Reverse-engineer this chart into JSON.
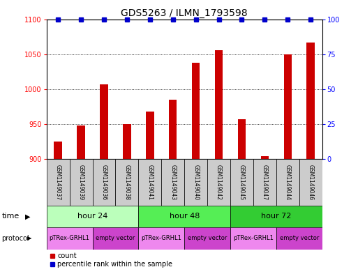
{
  "title": "GDS5263 / ILMN_1793598",
  "samples": [
    "GSM1149037",
    "GSM1149039",
    "GSM1149036",
    "GSM1149038",
    "GSM1149041",
    "GSM1149043",
    "GSM1149040",
    "GSM1149042",
    "GSM1149045",
    "GSM1149047",
    "GSM1149044",
    "GSM1149046"
  ],
  "counts": [
    925,
    948,
    1007,
    950,
    968,
    985,
    1038,
    1056,
    957,
    904,
    1050,
    1067
  ],
  "percentiles": [
    100,
    100,
    100,
    100,
    100,
    100,
    100,
    100,
    100,
    100,
    100,
    100
  ],
  "ylim_left": [
    900,
    1100
  ],
  "ylim_right": [
    0,
    100
  ],
  "yticks_left": [
    900,
    950,
    1000,
    1050,
    1100
  ],
  "yticks_right": [
    0,
    25,
    50,
    75,
    100
  ],
  "bar_color": "#cc0000",
  "dot_color": "#0000cc",
  "time_groups": [
    {
      "label": "hour 24",
      "start": 0,
      "end": 4,
      "color": "#bbffbb"
    },
    {
      "label": "hour 48",
      "start": 4,
      "end": 8,
      "color": "#55ee55"
    },
    {
      "label": "hour 72",
      "start": 8,
      "end": 12,
      "color": "#33cc33"
    }
  ],
  "protocol_groups": [
    {
      "label": "pTRex-GRHL1",
      "start": 0,
      "end": 2,
      "color": "#ee88ee"
    },
    {
      "label": "empty vector",
      "start": 2,
      "end": 4,
      "color": "#cc44cc"
    },
    {
      "label": "pTRex-GRHL1",
      "start": 4,
      "end": 6,
      "color": "#ee88ee"
    },
    {
      "label": "empty vector",
      "start": 6,
      "end": 8,
      "color": "#cc44cc"
    },
    {
      "label": "pTRex-GRHL1",
      "start": 8,
      "end": 10,
      "color": "#ee88ee"
    },
    {
      "label": "empty vector",
      "start": 10,
      "end": 12,
      "color": "#cc44cc"
    }
  ],
  "sample_box_color": "#cccccc",
  "background_color": "#ffffff"
}
